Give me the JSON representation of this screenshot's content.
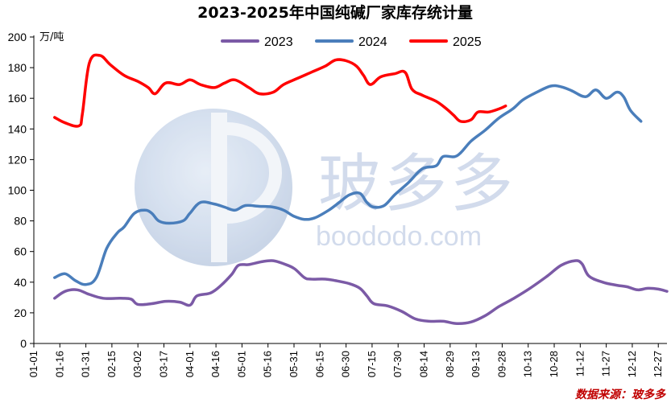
{
  "chart_data": {
    "type": "line",
    "title": "2023-2025年中国纯碱厂家库存统计量",
    "ylabel": "万/吨",
    "ylim": [
      0,
      200
    ],
    "yticks": [
      0,
      20,
      40,
      60,
      80,
      100,
      120,
      140,
      160,
      180,
      200
    ],
    "x_day_range": [
      0,
      365
    ],
    "xticks": [
      {
        "label": "01-01",
        "day": 0
      },
      {
        "label": "01-16",
        "day": 15
      },
      {
        "label": "01-31",
        "day": 30
      },
      {
        "label": "02-15",
        "day": 45
      },
      {
        "label": "03-02",
        "day": 60
      },
      {
        "label": "03-17",
        "day": 75
      },
      {
        "label": "04-01",
        "day": 90
      },
      {
        "label": "04-16",
        "day": 105
      },
      {
        "label": "05-01",
        "day": 120
      },
      {
        "label": "05-16",
        "day": 135
      },
      {
        "label": "05-31",
        "day": 150
      },
      {
        "label": "06-15",
        "day": 165
      },
      {
        "label": "06-30",
        "day": 180
      },
      {
        "label": "07-15",
        "day": 195
      },
      {
        "label": "07-30",
        "day": 210
      },
      {
        "label": "08-14",
        "day": 225
      },
      {
        "label": "08-29",
        "day": 240
      },
      {
        "label": "09-13",
        "day": 255
      },
      {
        "label": "09-28",
        "day": 270
      },
      {
        "label": "10-13",
        "day": 285
      },
      {
        "label": "10-28",
        "day": 300
      },
      {
        "label": "11-12",
        "day": 315
      },
      {
        "label": "11-27",
        "day": 330
      },
      {
        "label": "12-12",
        "day": 345
      },
      {
        "label": "12-27",
        "day": 360
      }
    ],
    "legend": "top-center",
    "series": [
      {
        "name": "2023",
        "color": "#7b5aa6",
        "points": [
          [
            12,
            29.5
          ],
          [
            18,
            34
          ],
          [
            25,
            35
          ],
          [
            32,
            32
          ],
          [
            40,
            29.5
          ],
          [
            50,
            29.5
          ],
          [
            56,
            29
          ],
          [
            60,
            25.5
          ],
          [
            68,
            26
          ],
          [
            76,
            27.5
          ],
          [
            84,
            27
          ],
          [
            90,
            25
          ],
          [
            94,
            31
          ],
          [
            102,
            33
          ],
          [
            108,
            38
          ],
          [
            114,
            45
          ],
          [
            118,
            51
          ],
          [
            124,
            51.5
          ],
          [
            132,
            53.5
          ],
          [
            138,
            54
          ],
          [
            144,
            52
          ],
          [
            150,
            49
          ],
          [
            156,
            43
          ],
          [
            160,
            42
          ],
          [
            168,
            42
          ],
          [
            174,
            41
          ],
          [
            182,
            39
          ],
          [
            188,
            36
          ],
          [
            192,
            31
          ],
          [
            196,
            26
          ],
          [
            204,
            24.5
          ],
          [
            212,
            21
          ],
          [
            220,
            16
          ],
          [
            228,
            14.5
          ],
          [
            236,
            14.5
          ],
          [
            244,
            13
          ],
          [
            252,
            14
          ],
          [
            260,
            18
          ],
          [
            268,
            24
          ],
          [
            276,
            29
          ],
          [
            286,
            36
          ],
          [
            296,
            44
          ],
          [
            304,
            51
          ],
          [
            312,
            54
          ],
          [
            316,
            52
          ],
          [
            320,
            44
          ],
          [
            328,
            40
          ],
          [
            336,
            38
          ],
          [
            342,
            37
          ],
          [
            348,
            35
          ],
          [
            354,
            36
          ],
          [
            360,
            35.5
          ],
          [
            365,
            34
          ]
        ]
      },
      {
        "name": "2024",
        "color": "#4a7ebb",
        "points": [
          [
            12,
            43
          ],
          [
            18,
            45.5
          ],
          [
            24,
            41
          ],
          [
            30,
            38.5
          ],
          [
            36,
            43
          ],
          [
            42,
            62
          ],
          [
            48,
            72
          ],
          [
            52,
            76
          ],
          [
            58,
            85
          ],
          [
            64,
            87
          ],
          [
            68,
            85
          ],
          [
            72,
            80
          ],
          [
            78,
            78.5
          ],
          [
            86,
            80
          ],
          [
            90,
            85
          ],
          [
            96,
            92
          ],
          [
            104,
            91
          ],
          [
            110,
            89
          ],
          [
            116,
            87
          ],
          [
            122,
            90
          ],
          [
            130,
            89.5
          ],
          [
            138,
            89
          ],
          [
            144,
            87
          ],
          [
            150,
            83
          ],
          [
            156,
            81
          ],
          [
            162,
            82
          ],
          [
            170,
            87
          ],
          [
            176,
            92
          ],
          [
            182,
            97
          ],
          [
            188,
            98
          ],
          [
            192,
            92
          ],
          [
            196,
            89
          ],
          [
            202,
            90
          ],
          [
            208,
            97
          ],
          [
            216,
            105
          ],
          [
            224,
            114
          ],
          [
            232,
            116
          ],
          [
            236,
            122
          ],
          [
            244,
            122.5
          ],
          [
            252,
            132
          ],
          [
            260,
            139
          ],
          [
            268,
            147
          ],
          [
            276,
            153
          ],
          [
            282,
            159
          ],
          [
            290,
            164
          ],
          [
            298,
            168
          ],
          [
            304,
            167.5
          ],
          [
            310,
            165
          ],
          [
            318,
            161
          ],
          [
            324,
            165.5
          ],
          [
            330,
            160
          ],
          [
            336,
            164
          ],
          [
            340,
            161
          ],
          [
            344,
            152
          ],
          [
            350,
            145
          ]
        ]
      },
      {
        "name": "2025",
        "color": "#ff0000",
        "points": [
          [
            12,
            147.5
          ],
          [
            18,
            144
          ],
          [
            26,
            142
          ],
          [
            28,
            150
          ],
          [
            32,
            183
          ],
          [
            38,
            188
          ],
          [
            44,
            182
          ],
          [
            52,
            175
          ],
          [
            60,
            171
          ],
          [
            66,
            167
          ],
          [
            70,
            163
          ],
          [
            76,
            170
          ],
          [
            84,
            169
          ],
          [
            90,
            172
          ],
          [
            96,
            169
          ],
          [
            104,
            167
          ],
          [
            110,
            170
          ],
          [
            116,
            172
          ],
          [
            124,
            167
          ],
          [
            130,
            163
          ],
          [
            138,
            164
          ],
          [
            144,
            169
          ],
          [
            152,
            173
          ],
          [
            160,
            177
          ],
          [
            168,
            181
          ],
          [
            174,
            185
          ],
          [
            180,
            184.5
          ],
          [
            186,
            181
          ],
          [
            190,
            175
          ],
          [
            194,
            169
          ],
          [
            200,
            174
          ],
          [
            208,
            176
          ],
          [
            214,
            177
          ],
          [
            218,
            166
          ],
          [
            224,
            162
          ],
          [
            232,
            158
          ],
          [
            238,
            153
          ],
          [
            242,
            149
          ],
          [
            246,
            145
          ],
          [
            252,
            146
          ],
          [
            256,
            151
          ],
          [
            262,
            151
          ],
          [
            268,
            153
          ],
          [
            272,
            155
          ]
        ]
      }
    ]
  },
  "watermark": {
    "cn": "玻多多",
    "url": "boododo.com"
  },
  "source_label": "数据来源：玻多多"
}
